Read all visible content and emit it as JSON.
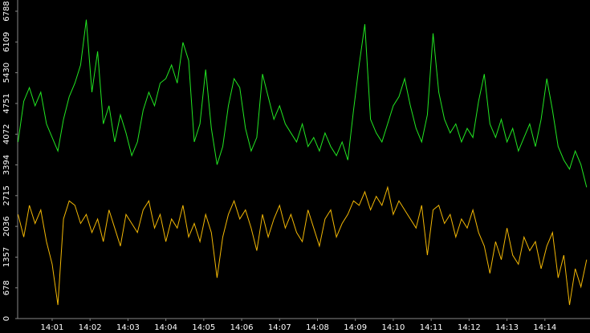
{
  "chart_data": {
    "type": "line",
    "x": [
      0.1,
      0.25,
      0.4,
      0.55,
      0.7,
      0.85,
      1,
      1.15,
      1.3,
      1.45,
      1.6,
      1.75,
      1.9,
      2.05,
      2.2,
      2.35,
      2.5,
      2.65,
      2.8,
      2.95,
      3.1,
      3.25,
      3.4,
      3.55,
      3.7,
      3.85,
      4,
      4.15,
      4.3,
      4.45,
      4.6,
      4.75,
      4.9,
      5.05,
      5.2,
      5.35,
      5.5,
      5.65,
      5.8,
      5.95,
      6.1,
      6.25,
      6.4,
      6.55,
      6.7,
      6.85,
      7,
      7.15,
      7.3,
      7.45,
      7.6,
      7.75,
      7.9,
      8.05,
      8.2,
      8.35,
      8.5,
      8.65,
      8.8,
      8.95,
      9.1,
      9.25,
      9.4,
      9.55,
      9.7,
      9.85,
      10,
      10.15,
      10.3,
      10.45,
      10.6,
      10.75,
      10.9,
      11.05,
      11.2,
      11.35,
      11.5,
      11.65,
      11.8,
      11.95,
      12.1,
      12.25,
      12.4,
      12.55,
      12.7,
      12.85,
      13,
      13.15,
      13.3,
      13.45,
      13.6,
      13.75,
      13.9,
      14.05,
      14.2,
      14.35,
      14.5,
      14.65,
      14.8,
      14.95,
      15.1
    ],
    "series": [
      {
        "color": "#22e622",
        "values": [
          3900,
          4800,
          5100,
          4700,
          5000,
          4300,
          4000,
          3700,
          4400,
          4900,
          5200,
          5600,
          6600,
          5000,
          5900,
          4300,
          4700,
          3900,
          4500,
          4100,
          3600,
          3900,
          4600,
          5000,
          4700,
          5200,
          5300,
          5600,
          5200,
          6100,
          5700,
          3900,
          4300,
          5500,
          4200,
          3400,
          3800,
          4700,
          5300,
          5100,
          4200,
          3700,
          4000,
          5400,
          4900,
          4400,
          4700,
          4300,
          4100,
          3900,
          4300,
          3800,
          4000,
          3700,
          4100,
          3800,
          3600,
          3900,
          3500,
          4600,
          5600,
          6500,
          4400,
          4100,
          3900,
          4300,
          4700,
          4900,
          5300,
          4700,
          4200,
          3900,
          4500,
          6300,
          5000,
          4400,
          4100,
          4300,
          3900,
          4200,
          4000,
          4800,
          5400,
          4300,
          4000,
          4400,
          3900,
          4200,
          3700,
          4000,
          4300,
          3800,
          4400,
          5300,
          4600,
          3800,
          3500,
          3300,
          3700,
          3400,
          2900
        ]
      },
      {
        "color": "#f2b705",
        "values": [
          2300,
          1800,
          2500,
          2100,
          2400,
          1700,
          1200,
          300,
          2200,
          2600,
          2500,
          2100,
          2300,
          1900,
          2200,
          1700,
          2400,
          2000,
          1600,
          2300,
          2100,
          1900,
          2400,
          2600,
          2000,
          2300,
          1700,
          2200,
          2000,
          2500,
          1800,
          2100,
          1700,
          2300,
          1900,
          900,
          1800,
          2300,
          2600,
          2200,
          2400,
          2000,
          1500,
          2300,
          1800,
          2200,
          2500,
          2000,
          2300,
          1900,
          1700,
          2400,
          2000,
          1600,
          2200,
          2400,
          1800,
          2100,
          2300,
          2600,
          2500,
          2800,
          2400,
          2700,
          2500,
          2900,
          2300,
          2600,
          2400,
          2200,
          2000,
          2500,
          1400,
          2400,
          2500,
          2100,
          2300,
          1800,
          2200,
          2000,
          2400,
          1900,
          1600,
          1000,
          1700,
          1300,
          2000,
          1400,
          1200,
          1800,
          1500,
          1700,
          1100,
          1600,
          1900,
          900,
          1400,
          300,
          1100,
          700,
          1300
        ]
      }
    ],
    "xlim": [
      0.09,
      15.19
    ],
    "xticks": [
      {
        "value": 1,
        "label": "14:01"
      },
      {
        "value": 2,
        "label": "14:02"
      },
      {
        "value": 3,
        "label": "14:03"
      },
      {
        "value": 4,
        "label": "14:04"
      },
      {
        "value": 5,
        "label": "14:05"
      },
      {
        "value": 6,
        "label": "14:06"
      },
      {
        "value": 7,
        "label": "14:07"
      },
      {
        "value": 8,
        "label": "14:08"
      },
      {
        "value": 9,
        "label": "14:09"
      },
      {
        "value": 10,
        "label": "14:10"
      },
      {
        "value": 11,
        "label": "14:11"
      },
      {
        "value": 12,
        "label": "14:12"
      },
      {
        "value": 13,
        "label": "14:13"
      },
      {
        "value": 14,
        "label": "14:14"
      }
    ],
    "ylim": [
      0,
      6788
    ],
    "yticks": [
      0,
      678,
      1357,
      2036,
      2715,
      3394,
      4072,
      4751,
      5430,
      6109,
      6788
    ]
  }
}
